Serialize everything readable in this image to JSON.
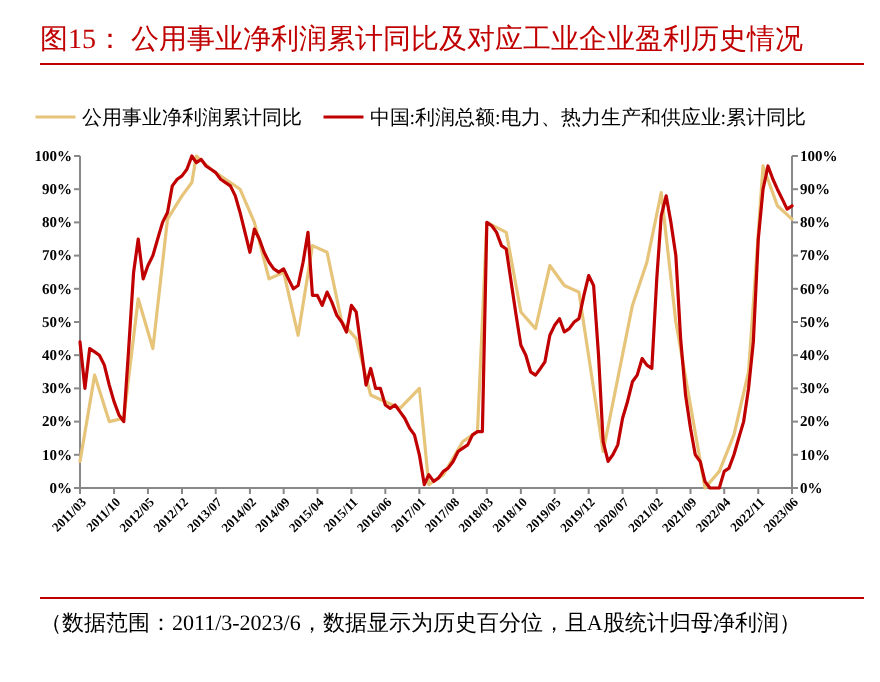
{
  "chart_data": {
    "type": "line",
    "title": "图15：  公用事业净利润累计同比及对应工业企业盈利历史情况",
    "annotations": [
      "（数据范围：2011/3-2023/6，数据显示为历史百分位，且A股统计归母净利润）"
    ],
    "legend": "top",
    "grid": false,
    "line_style": "solid",
    "xlim": [
      "2011-03",
      "2023-06"
    ],
    "xticks": [
      {
        "value": "2011-03",
        "label": "2011/03"
      },
      {
        "value": "2011-10",
        "label": "2011/10"
      },
      {
        "value": "2012-05",
        "label": "2012/05"
      },
      {
        "value": "2012-12",
        "label": "2012/12"
      },
      {
        "value": "2013-07",
        "label": "2013/07"
      },
      {
        "value": "2014-02",
        "label": "2014/02"
      },
      {
        "value": "2014-09",
        "label": "2014/09"
      },
      {
        "value": "2015-04",
        "label": "2015/04"
      },
      {
        "value": "2015-11",
        "label": "2015/11"
      },
      {
        "value": "2016-06",
        "label": "2016/06"
      },
      {
        "value": "2017-01",
        "label": "2017/01"
      },
      {
        "value": "2017-08",
        "label": "2017/08"
      },
      {
        "value": "2018-03",
        "label": "2018/03"
      },
      {
        "value": "2018-10",
        "label": "2018/10"
      },
      {
        "value": "2019-05",
        "label": "2019/05"
      },
      {
        "value": "2019-12",
        "label": "2019/12"
      },
      {
        "value": "2020-07",
        "label": "2020/07"
      },
      {
        "value": "2021-02",
        "label": "2021/02"
      },
      {
        "value": "2021-09",
        "label": "2021/09"
      },
      {
        "value": "2022-04",
        "label": "2022/04"
      },
      {
        "value": "2022-11",
        "label": "2022/11"
      },
      {
        "value": "2023-06",
        "label": "2023/06"
      }
    ],
    "ylim": [
      0,
      100
    ],
    "yticks": [
      {
        "value": 0,
        "label": "0%"
      },
      {
        "value": 10,
        "label": "10%"
      },
      {
        "value": 20,
        "label": "20%"
      },
      {
        "value": 30,
        "label": "30%"
      },
      {
        "value": 40,
        "label": "40%"
      },
      {
        "value": 50,
        "label": "50%"
      },
      {
        "value": 60,
        "label": "60%"
      },
      {
        "value": 70,
        "label": "70%"
      },
      {
        "value": 80,
        "label": "80%"
      },
      {
        "value": 90,
        "label": "90%"
      },
      {
        "value": 100,
        "label": "100%"
      }
    ],
    "y2lim": [
      0,
      100
    ],
    "y2ticks": [
      {
        "value": 0,
        "label": "0%"
      },
      {
        "value": 10,
        "label": "10%"
      },
      {
        "value": 20,
        "label": "20%"
      },
      {
        "value": 30,
        "label": "30%"
      },
      {
        "value": 40,
        "label": "40%"
      },
      {
        "value": 50,
        "label": "50%"
      },
      {
        "value": 60,
        "label": "60%"
      },
      {
        "value": 70,
        "label": "70%"
      },
      {
        "value": 80,
        "label": "80%"
      },
      {
        "value": 90,
        "label": "90%"
      },
      {
        "value": 100,
        "label": "100%"
      }
    ],
    "series": [
      {
        "name": "公用事业净利润累计同比",
        "color": "#e6c47a",
        "x": [
          "2011-03",
          "2011-06",
          "2011-09",
          "2011-12",
          "2012-03",
          "2012-06",
          "2012-09",
          "2012-12",
          "2013-02",
          "2013-03",
          "2013-06",
          "2013-09",
          "2013-12",
          "2014-03",
          "2014-06",
          "2014-09",
          "2014-12",
          "2015-03",
          "2015-06",
          "2015-09",
          "2015-12",
          "2016-03",
          "2016-06",
          "2016-09",
          "2017-01",
          "2017-03",
          "2017-06",
          "2017-10",
          "2018-01",
          "2018-03",
          "2018-07",
          "2018-10",
          "2019-01",
          "2019-04",
          "2019-07",
          "2019-10",
          "2020-03",
          "2020-09",
          "2020-12",
          "2021-03",
          "2021-06",
          "2021-12",
          "2022-03",
          "2022-06",
          "2022-09",
          "2022-12",
          "2023-03",
          "2023-06"
        ],
        "values": [
          8,
          34,
          20,
          21,
          57,
          42,
          81,
          88,
          92,
          100,
          96,
          93,
          90,
          80,
          63,
          65,
          46,
          73,
          71,
          50,
          45,
          28,
          26,
          24,
          30,
          1,
          4,
          14,
          17,
          80,
          77,
          53,
          48,
          67,
          61,
          59,
          11,
          55,
          68,
          89,
          50,
          0,
          5,
          16,
          35,
          97,
          85,
          81
        ]
      },
      {
        "name": "中国:利润总额:电力、热力生产和供应业:累计同比",
        "color": "#c00000",
        "x": [
          "2011-03",
          "2011-04",
          "2011-05",
          "2011-06",
          "2011-07",
          "2011-08",
          "2011-09",
          "2011-10",
          "2011-11",
          "2011-12",
          "2012-01",
          "2012-02",
          "2012-03",
          "2012-04",
          "2012-05",
          "2012-06",
          "2012-07",
          "2012-08",
          "2012-09",
          "2012-10",
          "2012-11",
          "2012-12",
          "2013-01",
          "2013-02",
          "2013-03",
          "2013-04",
          "2013-05",
          "2013-06",
          "2013-07",
          "2013-08",
          "2013-09",
          "2013-10",
          "2013-11",
          "2013-12",
          "2014-01",
          "2014-02",
          "2014-03",
          "2014-04",
          "2014-05",
          "2014-06",
          "2014-07",
          "2014-08",
          "2014-09",
          "2014-10",
          "2014-11",
          "2014-12",
          "2015-01",
          "2015-02",
          "2015-03",
          "2015-04",
          "2015-05",
          "2015-06",
          "2015-07",
          "2015-08",
          "2015-09",
          "2015-10",
          "2015-11",
          "2015-12",
          "2016-01",
          "2016-02",
          "2016-03",
          "2016-04",
          "2016-05",
          "2016-06",
          "2016-07",
          "2016-08",
          "2016-09",
          "2016-10",
          "2016-11",
          "2016-12",
          "2017-01",
          "2017-02",
          "2017-03",
          "2017-04",
          "2017-05",
          "2017-06",
          "2017-07",
          "2017-08",
          "2017-09",
          "2017-10",
          "2017-11",
          "2017-12",
          "2018-01",
          "2018-02",
          "2018-03",
          "2018-04",
          "2018-05",
          "2018-06",
          "2018-07",
          "2018-08",
          "2018-09",
          "2018-10",
          "2018-11",
          "2018-12",
          "2019-01",
          "2019-02",
          "2019-03",
          "2019-04",
          "2019-05",
          "2019-06",
          "2019-07",
          "2019-08",
          "2019-09",
          "2019-10",
          "2019-11",
          "2019-12",
          "2020-01",
          "2020-02",
          "2020-03",
          "2020-04",
          "2020-05",
          "2020-06",
          "2020-07",
          "2020-08",
          "2020-09",
          "2020-10",
          "2020-11",
          "2020-12",
          "2021-01",
          "2021-02",
          "2021-03",
          "2021-04",
          "2021-05",
          "2021-06",
          "2021-07",
          "2021-08",
          "2021-09",
          "2021-10",
          "2021-11",
          "2021-12",
          "2022-01",
          "2022-02",
          "2022-03",
          "2022-04",
          "2022-05",
          "2022-06",
          "2022-07",
          "2022-08",
          "2022-09",
          "2022-10",
          "2022-11",
          "2022-12",
          "2023-01",
          "2023-02",
          "2023-03",
          "2023-04",
          "2023-05",
          "2023-06"
        ],
        "values": [
          44,
          30,
          42,
          41,
          40,
          37,
          31,
          26,
          22,
          20,
          42,
          65,
          75,
          63,
          67,
          70,
          75,
          80,
          83,
          91,
          93,
          94,
          96,
          100,
          98,
          99,
          97,
          96,
          95,
          93,
          92,
          91,
          88,
          83,
          77,
          71,
          78,
          75,
          71,
          68,
          66,
          65,
          66,
          63,
          60,
          61,
          68,
          77,
          58,
          58,
          55,
          59,
          56,
          52,
          50,
          47,
          55,
          53,
          42,
          31,
          36,
          30,
          30,
          25,
          24,
          25,
          23,
          21,
          18,
          16,
          10,
          1,
          4,
          2,
          3,
          5,
          6,
          8,
          11,
          12,
          13,
          16,
          17,
          17,
          80,
          79,
          77,
          73,
          72,
          62,
          52,
          43,
          40,
          35,
          34,
          36,
          38,
          46,
          49,
          51,
          47,
          48,
          50,
          51,
          58,
          64,
          61,
          40,
          14,
          8,
          10,
          13,
          21,
          26,
          32,
          34,
          39,
          37,
          36,
          63,
          82,
          88,
          80,
          70,
          45,
          28,
          18,
          10,
          8,
          2,
          0,
          0,
          0,
          5,
          6,
          10,
          15,
          20,
          30,
          44,
          75,
          90,
          97,
          93,
          90,
          87,
          84,
          85
        ]
      }
    ]
  }
}
